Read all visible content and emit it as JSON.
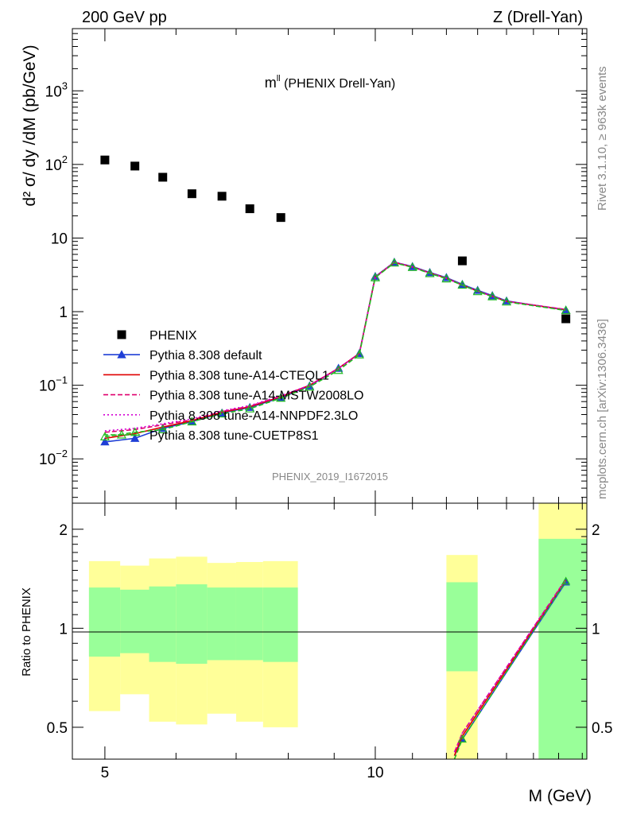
{
  "header": {
    "left_title": "200 GeV pp",
    "right_title": "Z (Drell-Yan)"
  },
  "side_labels": {
    "rivet": "Rivet 3.1.10, ≥ 963k events",
    "mcplots": "mcplots.cern.ch [arXiv:1306.3436]"
  },
  "chart_data": [
    {
      "type": "scatter",
      "title_main": "m",
      "title_sup": "ll",
      "title_rest": " (PHENIX Drell-Yan)",
      "ylabel": "d² σ/ dy /dM (pb/GeV)",
      "xlabel": "",
      "watermark": "PHENIX_2019_I1672015",
      "x_scale": "log",
      "y_scale": "log",
      "xlim": [
        4.6,
        17.2
      ],
      "ylim": [
        0.0025,
        7000
      ],
      "y_ticks": [
        {
          "v": 0.01,
          "base": "10",
          "exp": "−2"
        },
        {
          "v": 0.1,
          "base": "10",
          "exp": "−1"
        },
        {
          "v": 1,
          "base": "1",
          "exp": ""
        },
        {
          "v": 10,
          "base": "10",
          "exp": ""
        },
        {
          "v": 100,
          "base": "10",
          "exp": "2"
        },
        {
          "v": 1000,
          "base": "10",
          "exp": "3"
        }
      ],
      "legend_position": "bottom-left",
      "series": [
        {
          "name": "PHENIX",
          "color": "#000000",
          "marker": "square",
          "x": [
            5.0,
            5.4,
            5.8,
            6.25,
            6.75,
            7.25,
            7.85,
            12.5,
            16.3
          ],
          "y": [
            115,
            95,
            67,
            40,
            37,
            25,
            19,
            4.9,
            0.8
          ]
        },
        {
          "name": "Pythia 8.308 default",
          "color": "#1f3fd6",
          "marker": "triangle",
          "line": "solid",
          "x": [
            5.0,
            5.4,
            5.8,
            6.25,
            6.75,
            7.25,
            7.85,
            8.45,
            9.1,
            9.6,
            10.0,
            10.5,
            11.0,
            11.5,
            12.0,
            12.5,
            13.0,
            13.5,
            14.0,
            16.3
          ],
          "y": [
            0.017,
            0.019,
            0.026,
            0.032,
            0.042,
            0.05,
            0.068,
            0.098,
            0.17,
            0.27,
            3.0,
            4.7,
            4.1,
            3.4,
            2.9,
            2.35,
            1.95,
            1.65,
            1.4,
            1.05
          ]
        },
        {
          "name": "Pythia 8.308 tune-A14-CTEQL1",
          "color": "#e00000",
          "line": "solid",
          "x": [
            5.0,
            5.4,
            5.8,
            6.25,
            6.75,
            7.25,
            7.85,
            8.45,
            9.1,
            9.6,
            10.0,
            10.5,
            11.0,
            11.5,
            12.0,
            12.5,
            13.0,
            13.5,
            14.0,
            16.3
          ],
          "y": [
            0.019,
            0.022,
            0.027,
            0.033,
            0.043,
            0.051,
            0.07,
            0.1,
            0.17,
            0.27,
            2.95,
            4.65,
            4.05,
            3.35,
            2.85,
            2.3,
            1.9,
            1.62,
            1.38,
            1.06
          ]
        },
        {
          "name": "Pythia 8.308 tune-A14-MSTW2008LO",
          "color": "#e0006e",
          "line": "dashed",
          "x": [
            5.0,
            5.4,
            5.8,
            6.25,
            6.75,
            7.25,
            7.85,
            8.45,
            9.1,
            9.6,
            10.0,
            10.5,
            11.0,
            11.5,
            12.0,
            12.5,
            13.0,
            13.5,
            14.0,
            16.3
          ],
          "y": [
            0.023,
            0.025,
            0.029,
            0.034,
            0.044,
            0.052,
            0.071,
            0.1,
            0.17,
            0.27,
            2.95,
            4.7,
            4.05,
            3.35,
            2.85,
            2.3,
            1.9,
            1.62,
            1.38,
            1.07
          ]
        },
        {
          "name": "Pythia 8.308 tune-A14-NNPDF2.3LO",
          "color": "#d400d4",
          "line": "dotted",
          "x": [
            5.0,
            5.4,
            5.8,
            6.25,
            6.75,
            7.25,
            7.85,
            8.45,
            9.1,
            9.6,
            10.0,
            10.5,
            11.0,
            11.5,
            12.0,
            12.5,
            13.0,
            13.5,
            14.0,
            16.3
          ],
          "y": [
            0.024,
            0.026,
            0.03,
            0.035,
            0.045,
            0.053,
            0.072,
            0.1,
            0.17,
            0.27,
            2.95,
            4.7,
            4.05,
            3.35,
            2.85,
            2.3,
            1.9,
            1.62,
            1.38,
            1.07
          ]
        },
        {
          "name": "Pythia 8.308 tune-CUETP8S1",
          "color": "#22bb22",
          "marker": "open-triangle",
          "line": "dashed",
          "x": [
            5.0,
            5.4,
            5.8,
            6.25,
            6.75,
            7.25,
            7.85,
            8.45,
            9.1,
            9.6,
            10.0,
            10.5,
            11.0,
            11.5,
            12.0,
            12.5,
            13.0,
            13.5,
            14.0,
            16.3
          ],
          "y": [
            0.02,
            0.023,
            0.025,
            0.032,
            0.041,
            0.048,
            0.067,
            0.095,
            0.16,
            0.26,
            2.9,
            4.6,
            4.0,
            3.3,
            2.8,
            2.3,
            1.88,
            1.6,
            1.36,
            1.04
          ]
        }
      ]
    },
    {
      "type": "line",
      "ylabel": "Ratio to PHENIX",
      "xlabel": "M (GeV)",
      "x_scale": "log",
      "y_scale": "log",
      "xlim": [
        4.6,
        17.2
      ],
      "ylim": [
        0.4,
        2.4
      ],
      "x_ticks": [
        {
          "v": 5,
          "label": "5"
        },
        {
          "v": 10,
          "label": "10"
        }
      ],
      "y_ticks": [
        {
          "v": 0.5,
          "label": "0.5"
        },
        {
          "v": 1,
          "label": "1"
        },
        {
          "v": 2,
          "label": "2"
        }
      ],
      "reference_line": 1,
      "bands": [
        {
          "x0": 4.8,
          "x1": 5.2,
          "yellow": [
            0.56,
            1.6
          ],
          "green": [
            0.82,
            1.33
          ]
        },
        {
          "x0": 5.2,
          "x1": 5.6,
          "yellow": [
            0.63,
            1.55
          ],
          "green": [
            0.84,
            1.31
          ]
        },
        {
          "x0": 5.6,
          "x1": 6.0,
          "yellow": [
            0.52,
            1.63
          ],
          "green": [
            0.79,
            1.34
          ]
        },
        {
          "x0": 6.0,
          "x1": 6.5,
          "yellow": [
            0.51,
            1.65
          ],
          "green": [
            0.78,
            1.36
          ]
        },
        {
          "x0": 6.5,
          "x1": 7.0,
          "yellow": [
            0.55,
            1.58
          ],
          "green": [
            0.8,
            1.33
          ]
        },
        {
          "x0": 7.0,
          "x1": 7.5,
          "yellow": [
            0.52,
            1.59
          ],
          "green": [
            0.8,
            1.33
          ]
        },
        {
          "x0": 7.5,
          "x1": 8.2,
          "yellow": [
            0.5,
            1.6
          ],
          "green": [
            0.79,
            1.33
          ]
        },
        {
          "x0": 12.0,
          "x1": 13.0,
          "yellow": [
            0.4,
            1.67
          ],
          "green": [
            0.74,
            1.38
          ]
        },
        {
          "x0": 15.2,
          "x1": 17.2,
          "yellow": [
            0.4,
            2.4
          ],
          "green": [
            0.4,
            1.87
          ]
        }
      ],
      "series": [
        {
          "name": "Pythia 8.308 default",
          "color": "#1f3fd6",
          "line": "solid",
          "marker": "triangle",
          "x": [
            12.25,
            12.5,
            16.3
          ],
          "y": [
            0.41,
            0.46,
            1.38
          ]
        },
        {
          "name": "Pythia 8.308 tune-A14-CTEQL1",
          "color": "#e00000",
          "line": "solid",
          "x": [
            12.25,
            12.5,
            16.3
          ],
          "y": [
            0.41,
            0.47,
            1.4
          ]
        },
        {
          "name": "Pythia 8.308 tune-A14-MSTW2008LO",
          "color": "#e0006e",
          "line": "dashed",
          "x": [
            12.25,
            12.5,
            16.3
          ],
          "y": [
            0.42,
            0.48,
            1.41
          ]
        },
        {
          "name": "Pythia 8.308 tune-A14-NNPDF2.3LO",
          "color": "#d400d4",
          "line": "dotted",
          "x": [
            12.25,
            12.5,
            16.3
          ],
          "y": [
            0.42,
            0.48,
            1.41
          ]
        },
        {
          "name": "Pythia 8.308 tune-CUETP8S1",
          "color": "#22bb22",
          "line": "dashed",
          "marker": "open-triangle",
          "x": [
            12.25,
            12.5,
            16.3
          ],
          "y": [
            0.4,
            0.46,
            1.39
          ]
        }
      ]
    }
  ]
}
